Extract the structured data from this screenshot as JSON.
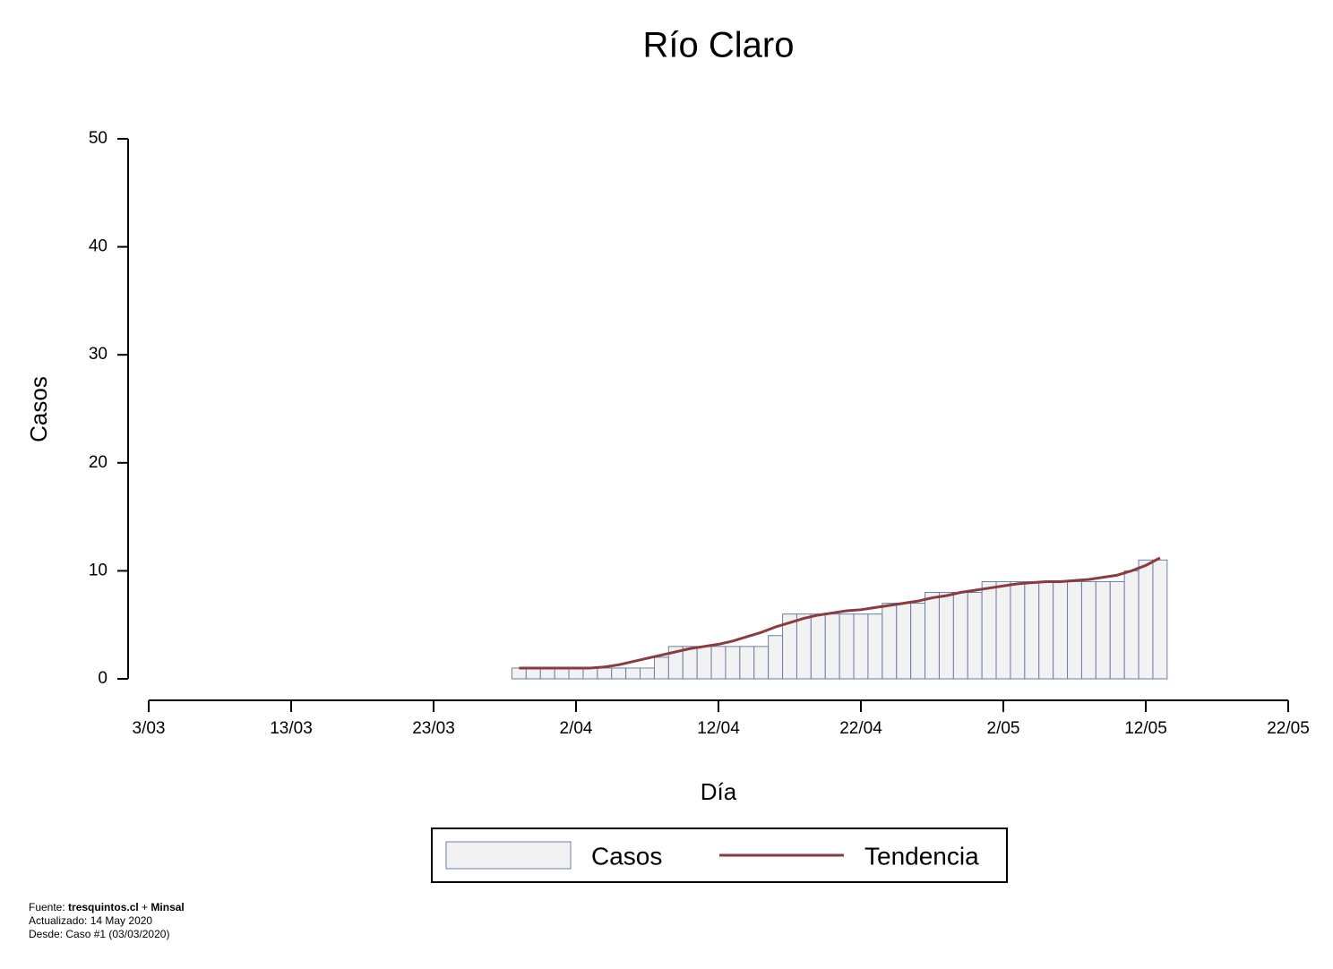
{
  "chart_data": {
    "type": "bar",
    "title": "Río Claro",
    "x_label": "Día",
    "y_label": "Casos",
    "x": [
      "29/03",
      "30/03",
      "31/03",
      "1/04",
      "2/04",
      "3/04",
      "4/04",
      "5/04",
      "6/04",
      "7/04",
      "8/04",
      "9/04",
      "10/04",
      "11/04",
      "12/04",
      "13/04",
      "14/04",
      "15/04",
      "16/04",
      "17/04",
      "18/04",
      "19/04",
      "20/04",
      "21/04",
      "22/04",
      "23/04",
      "24/04",
      "25/04",
      "26/04",
      "27/04",
      "28/04",
      "29/04",
      "30/04",
      "1/05",
      "2/05",
      "3/05",
      "4/05",
      "5/05",
      "6/05",
      "7/05",
      "8/05",
      "9/05",
      "10/05",
      "11/05",
      "12/05",
      "13/05"
    ],
    "series": [
      {
        "name": "Casos",
        "type": "bar",
        "color": "#f2f2f2",
        "edge_color": "#6b7fa6",
        "values": [
          1,
          1,
          1,
          1,
          1,
          1,
          1,
          1,
          1,
          1,
          2,
          3,
          3,
          3,
          3,
          3,
          3,
          3,
          4,
          6,
          6,
          6,
          6,
          6,
          6,
          6,
          7,
          7,
          7,
          8,
          8,
          8,
          8,
          9,
          9,
          9,
          9,
          9,
          9,
          9,
          9,
          9,
          9,
          10,
          11,
          11
        ]
      },
      {
        "name": "Tendencia",
        "type": "line",
        "color": "#8b3a3e",
        "values": [
          1,
          1,
          1,
          1,
          1,
          1,
          1.1,
          1.3,
          1.6,
          1.9,
          2.2,
          2.5,
          2.8,
          3,
          3.2,
          3.5,
          3.9,
          4.3,
          4.8,
          5.2,
          5.6,
          5.9,
          6.1,
          6.3,
          6.4,
          6.6,
          6.8,
          7,
          7.2,
          7.5,
          7.7,
          8,
          8.2,
          8.4,
          8.6,
          8.8,
          8.9,
          9,
          9,
          9.1,
          9.2,
          9.4,
          9.6,
          10,
          10.5,
          11.2
        ]
      }
    ],
    "xlim": [
      "3/03",
      "22/05"
    ],
    "xticks": [
      "3/03",
      "13/03",
      "23/03",
      "2/04",
      "12/04",
      "22/04",
      "2/05",
      "12/05",
      "22/05"
    ],
    "ylim": [
      0,
      50
    ],
    "yticks": [
      0,
      10,
      20,
      30,
      40,
      50
    ],
    "grid": false,
    "footer": {
      "source_prefix": "Fuente: ",
      "source_site": "tresquintos.cl",
      "source_join": " + ",
      "source_org": "Minsal",
      "updated": "Actualizado: 14 May 2020",
      "since": "Desde: Caso #1  (03/03/2020)"
    }
  }
}
